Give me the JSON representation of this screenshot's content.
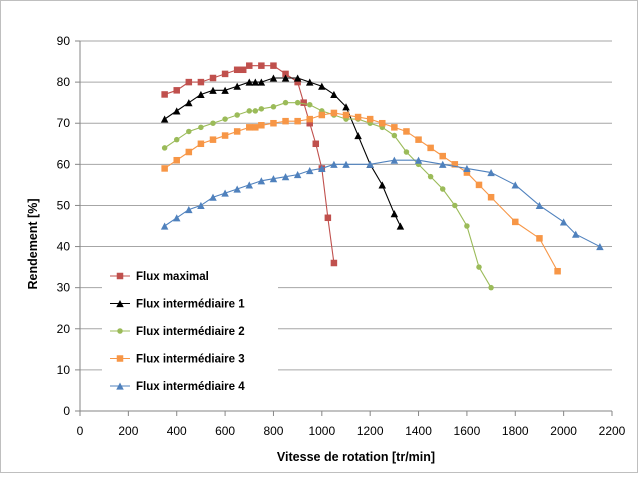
{
  "chart_data": {
    "type": "line",
    "title": "",
    "xlabel": "Vitesse de rotation [tr/min]",
    "ylabel": "Rendement [%]",
    "xlim": [
      0,
      2200
    ],
    "ylim": [
      0,
      90
    ],
    "xticks": [
      0,
      200,
      400,
      600,
      800,
      1000,
      1200,
      1400,
      1600,
      1800,
      2000,
      2200
    ],
    "yticks": [
      0,
      10,
      20,
      30,
      40,
      50,
      60,
      70,
      80,
      90
    ],
    "grid": "horizontal",
    "legend_position": "bottom-left",
    "series": [
      {
        "name": "Flux maximal",
        "color": "#C0504D",
        "marker": "square",
        "points": [
          [
            350,
            77
          ],
          [
            400,
            78
          ],
          [
            450,
            80
          ],
          [
            500,
            80
          ],
          [
            550,
            81
          ],
          [
            600,
            82
          ],
          [
            650,
            83
          ],
          [
            675,
            83
          ],
          [
            700,
            84
          ],
          [
            750,
            84
          ],
          [
            800,
            84
          ],
          [
            850,
            82
          ],
          [
            900,
            80
          ],
          [
            925,
            75
          ],
          [
            950,
            70
          ],
          [
            975,
            65
          ],
          [
            1000,
            59
          ],
          [
            1025,
            47
          ],
          [
            1050,
            36
          ]
        ]
      },
      {
        "name": "Flux intermédiaire 1",
        "color": "#000000",
        "marker": "triangle",
        "points": [
          [
            350,
            71
          ],
          [
            400,
            73
          ],
          [
            450,
            75
          ],
          [
            500,
            77
          ],
          [
            550,
            78
          ],
          [
            600,
            78
          ],
          [
            650,
            79
          ],
          [
            700,
            80
          ],
          [
            725,
            80
          ],
          [
            750,
            80
          ],
          [
            800,
            81
          ],
          [
            850,
            81
          ],
          [
            900,
            81
          ],
          [
            950,
            80
          ],
          [
            1000,
            79
          ],
          [
            1050,
            77
          ],
          [
            1100,
            74
          ],
          [
            1150,
            67
          ],
          [
            1200,
            60
          ],
          [
            1250,
            55
          ],
          [
            1300,
            48
          ],
          [
            1325,
            45
          ]
        ]
      },
      {
        "name": "Flux intermédiaire 2",
        "color": "#9BBB59",
        "marker": "circle",
        "points": [
          [
            350,
            64
          ],
          [
            400,
            66
          ],
          [
            450,
            68
          ],
          [
            500,
            69
          ],
          [
            550,
            70
          ],
          [
            600,
            71
          ],
          [
            650,
            72
          ],
          [
            700,
            73
          ],
          [
            725,
            73
          ],
          [
            750,
            73.5
          ],
          [
            800,
            74
          ],
          [
            850,
            75
          ],
          [
            900,
            75
          ],
          [
            950,
            74.5
          ],
          [
            1000,
            73
          ],
          [
            1050,
            72
          ],
          [
            1100,
            71
          ],
          [
            1150,
            71
          ],
          [
            1200,
            70
          ],
          [
            1250,
            69
          ],
          [
            1300,
            67
          ],
          [
            1350,
            63
          ],
          [
            1400,
            60
          ],
          [
            1450,
            57
          ],
          [
            1500,
            54
          ],
          [
            1550,
            50
          ],
          [
            1600,
            45
          ],
          [
            1650,
            35
          ],
          [
            1700,
            30
          ]
        ]
      },
      {
        "name": "Flux intermédiaire 3",
        "color": "#F79646",
        "marker": "square",
        "points": [
          [
            350,
            59
          ],
          [
            400,
            61
          ],
          [
            450,
            63
          ],
          [
            500,
            65
          ],
          [
            550,
            66
          ],
          [
            600,
            67
          ],
          [
            650,
            68
          ],
          [
            700,
            69
          ],
          [
            725,
            69
          ],
          [
            750,
            69.5
          ],
          [
            800,
            70
          ],
          [
            850,
            70.5
          ],
          [
            900,
            70.5
          ],
          [
            950,
            71
          ],
          [
            1000,
            72
          ],
          [
            1050,
            72.5
          ],
          [
            1100,
            72
          ],
          [
            1150,
            71.5
          ],
          [
            1200,
            71
          ],
          [
            1250,
            70
          ],
          [
            1300,
            69
          ],
          [
            1350,
            68
          ],
          [
            1400,
            66
          ],
          [
            1450,
            64
          ],
          [
            1500,
            62
          ],
          [
            1550,
            60
          ],
          [
            1600,
            58
          ],
          [
            1650,
            55
          ],
          [
            1700,
            52
          ],
          [
            1800,
            46
          ],
          [
            1900,
            42
          ],
          [
            1975,
            34
          ]
        ]
      },
      {
        "name": "Flux intermédiaire 4",
        "color": "#4F81BD",
        "marker": "triangle",
        "points": [
          [
            350,
            45
          ],
          [
            400,
            47
          ],
          [
            450,
            49
          ],
          [
            500,
            50
          ],
          [
            550,
            52
          ],
          [
            600,
            53
          ],
          [
            650,
            54
          ],
          [
            700,
            55
          ],
          [
            750,
            56
          ],
          [
            800,
            56.5
          ],
          [
            850,
            57
          ],
          [
            900,
            57.5
          ],
          [
            950,
            58.5
          ],
          [
            1000,
            59
          ],
          [
            1050,
            60
          ],
          [
            1100,
            60
          ],
          [
            1200,
            60
          ],
          [
            1300,
            61
          ],
          [
            1400,
            61
          ],
          [
            1500,
            60
          ],
          [
            1600,
            59
          ],
          [
            1700,
            58
          ],
          [
            1800,
            55
          ],
          [
            1900,
            50
          ],
          [
            2000,
            46
          ],
          [
            2050,
            43
          ],
          [
            2150,
            40
          ]
        ]
      }
    ]
  }
}
